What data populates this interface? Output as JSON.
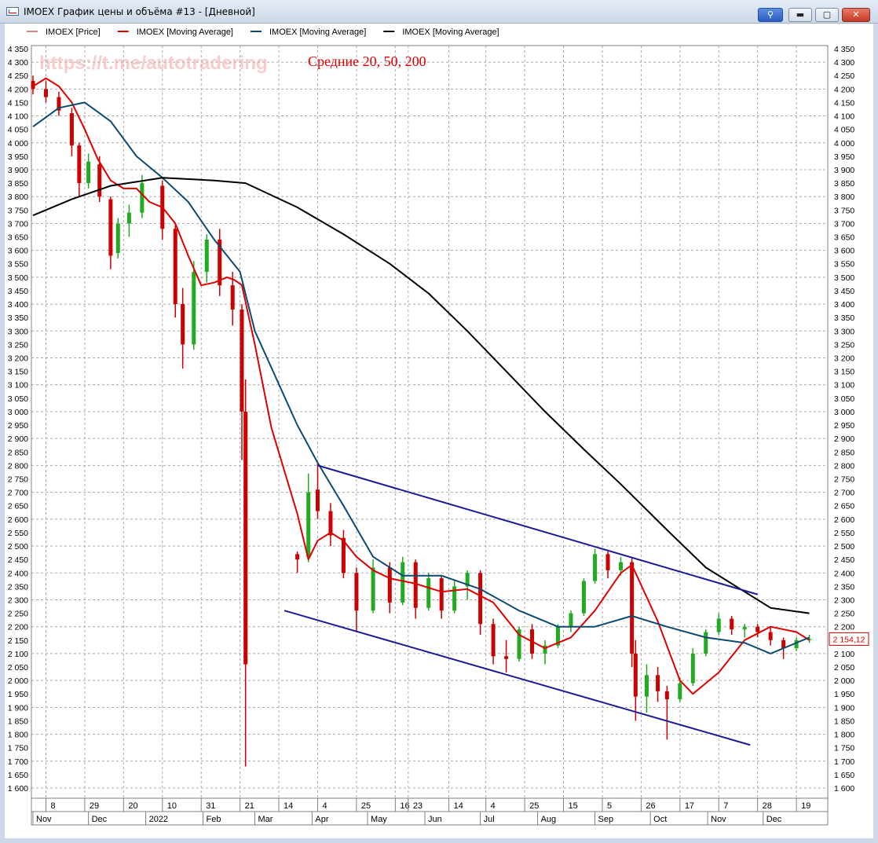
{
  "window": {
    "title": "IMOEX График цены и объёма #13 - [Дневной]",
    "controls": {
      "pin": "⚲",
      "minimize": "▬",
      "maximize": "▢",
      "close": "✕"
    }
  },
  "annotations": {
    "watermark": "https://t.me/autotradering",
    "note": "Средние 20, 50, 200"
  },
  "chart_data": {
    "type": "line",
    "legend": [
      {
        "label": "IMOEX [Price]",
        "color": "#cc0000",
        "style": "thin"
      },
      {
        "label": "IMOEX [Moving Average]",
        "color": "#e00000"
      },
      {
        "label": "IMOEX [Moving Average]",
        "color": "#0d4a73"
      },
      {
        "label": "IMOEX [Moving Average]",
        "color": "#000000"
      }
    ],
    "legend_position": "top-left",
    "last_price_label": "2 154,12",
    "ylim": [
      1600,
      4350
    ],
    "y_ticks": [
      "1 600",
      "1 650",
      "1 700",
      "1 750",
      "1 800",
      "1 850",
      "1 900",
      "1 950",
      "2 000",
      "2 050",
      "2 100",
      "2 150",
      "2 200",
      "2 250",
      "2 300",
      "2 350",
      "2 400",
      "2 450",
      "2 500",
      "2 550",
      "2 600",
      "2 650",
      "2 700",
      "2 750",
      "2 800",
      "2 850",
      "2 900",
      "2 950",
      "3 000",
      "3 050",
      "3 100",
      "3 150",
      "3 200",
      "3 250",
      "3 300",
      "3 350",
      "3 400",
      "3 450",
      "3 500",
      "3 550",
      "3 600",
      "3 650",
      "3 700",
      "3 750",
      "3 800",
      "3 850",
      "3 900",
      "3 950",
      "4 000",
      "4 050",
      "4 100",
      "4 150",
      "4 200",
      "4 250",
      "4 300",
      "4 350"
    ],
    "x_day_ticks": [
      "8",
      "29",
      "20",
      "10",
      "31",
      "21",
      "14",
      "4",
      "25",
      "16",
      "23",
      "14",
      "4",
      "25",
      "15",
      "5",
      "26",
      "17",
      "7",
      "28",
      "19"
    ],
    "x_day_tick_values": [
      "2021-11-08",
      "2021-11-29",
      "2021-12-20",
      "2022-01-10",
      "2022-01-31",
      "2022-02-21",
      "2022-03-14",
      "2022-04-04",
      "2022-04-25",
      "2022-05-16",
      "2022-05-23",
      "2022-06-14",
      "2022-07-04",
      "2022-07-25",
      "2022-08-15",
      "2022-09-05",
      "2022-09-26",
      "2022-10-17",
      "2022-11-07",
      "2022-11-28",
      "2022-12-19"
    ],
    "x_month_ticks": [
      "Nov",
      "Dec",
      "2022",
      "Feb",
      "Mar",
      "Apr",
      "May",
      "Jun",
      "Jul",
      "Aug",
      "Sep",
      "Oct",
      "Nov",
      "Dec"
    ],
    "x_month_tick_values": [
      "2021-11-01",
      "2021-12-01",
      "2022-01-01",
      "2022-02-01",
      "2022-03-01",
      "2022-04-01",
      "2022-05-01",
      "2022-06-01",
      "2022-07-01",
      "2022-08-01",
      "2022-09-01",
      "2022-10-01",
      "2022-11-01",
      "2022-12-01"
    ],
    "grid": true,
    "series": [
      {
        "name": "IMOEX [Price]",
        "kind": "candles",
        "up_color": "#22aa22",
        "down_color": "#cc0000",
        "points": [
          [
            "2021-11-01",
            4230,
            4250,
            4180,
            4200
          ],
          [
            "2021-11-08",
            4200,
            4230,
            4150,
            4170
          ],
          [
            "2021-11-15",
            4170,
            4190,
            4100,
            4120
          ],
          [
            "2021-11-22",
            4110,
            4130,
            3950,
            3990
          ],
          [
            "2021-11-26",
            3990,
            4000,
            3800,
            3850
          ],
          [
            "2021-12-01",
            3850,
            3960,
            3830,
            3930
          ],
          [
            "2021-12-07",
            3920,
            3950,
            3780,
            3800
          ],
          [
            "2021-12-13",
            3790,
            3800,
            3530,
            3580
          ],
          [
            "2021-12-17",
            3590,
            3720,
            3570,
            3700
          ],
          [
            "2021-12-23",
            3700,
            3770,
            3650,
            3740
          ],
          [
            "2021-12-30",
            3740,
            3880,
            3720,
            3850
          ],
          [
            "2022-01-10",
            3840,
            3860,
            3640,
            3680
          ],
          [
            "2022-01-17",
            3680,
            3700,
            3350,
            3400
          ],
          [
            "2022-01-21",
            3400,
            3460,
            3160,
            3250
          ],
          [
            "2022-01-27",
            3250,
            3560,
            3230,
            3520
          ],
          [
            "2022-02-03",
            3520,
            3660,
            3480,
            3640
          ],
          [
            "2022-02-10",
            3640,
            3680,
            3430,
            3470
          ],
          [
            "2022-02-17",
            3470,
            3520,
            3320,
            3380
          ],
          [
            "2022-02-22",
            3380,
            3400,
            2820,
            3000
          ],
          [
            "2022-02-24",
            3000,
            3120,
            1680,
            2060
          ],
          [
            "2022-03-24",
            2470,
            2480,
            2400,
            2450
          ],
          [
            "2022-03-30",
            2460,
            2770,
            2440,
            2700
          ],
          [
            "2022-04-04",
            2710,
            2810,
            2600,
            2630
          ],
          [
            "2022-04-11",
            2630,
            2660,
            2500,
            2540
          ],
          [
            "2022-04-18",
            2530,
            2560,
            2380,
            2400
          ],
          [
            "2022-04-25",
            2400,
            2420,
            2180,
            2260
          ],
          [
            "2022-05-04",
            2260,
            2450,
            2250,
            2420
          ],
          [
            "2022-05-13",
            2420,
            2440,
            2250,
            2290
          ],
          [
            "2022-05-20",
            2290,
            2460,
            2280,
            2440
          ],
          [
            "2022-05-27",
            2440,
            2450,
            2230,
            2270
          ],
          [
            "2022-06-03",
            2270,
            2400,
            2260,
            2380
          ],
          [
            "2022-06-10",
            2380,
            2390,
            2230,
            2260
          ],
          [
            "2022-06-17",
            2260,
            2370,
            2250,
            2350
          ],
          [
            "2022-06-24",
            2350,
            2410,
            2300,
            2400
          ],
          [
            "2022-07-01",
            2400,
            2410,
            2170,
            2210
          ],
          [
            "2022-07-08",
            2210,
            2230,
            2060,
            2090
          ],
          [
            "2022-07-15",
            2090,
            2150,
            2030,
            2080
          ],
          [
            "2022-07-22",
            2080,
            2200,
            2070,
            2190
          ],
          [
            "2022-07-29",
            2190,
            2210,
            2080,
            2100
          ],
          [
            "2022-08-05",
            2100,
            2150,
            2060,
            2130
          ],
          [
            "2022-08-12",
            2130,
            2210,
            2120,
            2200
          ],
          [
            "2022-08-19",
            2200,
            2260,
            2180,
            2250
          ],
          [
            "2022-08-26",
            2250,
            2380,
            2240,
            2370
          ],
          [
            "2022-09-01",
            2370,
            2490,
            2360,
            2470
          ],
          [
            "2022-09-08",
            2470,
            2480,
            2380,
            2410
          ],
          [
            "2022-09-15",
            2410,
            2460,
            2390,
            2440
          ],
          [
            "2022-09-21",
            2440,
            2460,
            2050,
            2100
          ],
          [
            "2022-09-23",
            2100,
            2150,
            1850,
            1940
          ],
          [
            "2022-09-29",
            1940,
            2060,
            1880,
            2020
          ],
          [
            "2022-10-05",
            2020,
            2050,
            1920,
            1960
          ],
          [
            "2022-10-10",
            1960,
            1980,
            1780,
            1930
          ],
          [
            "2022-10-17",
            1930,
            2010,
            1920,
            1990
          ],
          [
            "2022-10-24",
            1990,
            2120,
            1980,
            2100
          ],
          [
            "2022-10-31",
            2100,
            2190,
            2090,
            2180
          ],
          [
            "2022-11-07",
            2180,
            2250,
            2170,
            2230
          ],
          [
            "2022-11-14",
            2230,
            2240,
            2170,
            2190
          ],
          [
            "2022-11-21",
            2190,
            2210,
            2160,
            2200
          ],
          [
            "2022-11-28",
            2200,
            2210,
            2160,
            2180
          ],
          [
            "2022-12-05",
            2180,
            2200,
            2130,
            2150
          ],
          [
            "2022-12-12",
            2150,
            2160,
            2080,
            2120
          ],
          [
            "2022-12-19",
            2120,
            2160,
            2110,
            2150
          ],
          [
            "2022-12-26",
            2150,
            2170,
            2140,
            2154.12
          ]
        ]
      },
      {
        "name": "IMOEX [Moving Average]",
        "period": 20,
        "color": "#e00000",
        "points": [
          [
            "2021-11-01",
            4210
          ],
          [
            "2021-11-08",
            4240
          ],
          [
            "2021-11-15",
            4210
          ],
          [
            "2021-11-22",
            4150
          ],
          [
            "2021-11-29",
            4050
          ],
          [
            "2021-12-06",
            3940
          ],
          [
            "2021-12-13",
            3860
          ],
          [
            "2021-12-20",
            3830
          ],
          [
            "2021-12-27",
            3830
          ],
          [
            "2022-01-03",
            3780
          ],
          [
            "2022-01-10",
            3760
          ],
          [
            "2022-01-17",
            3700
          ],
          [
            "2022-01-24",
            3580
          ],
          [
            "2022-01-31",
            3470
          ],
          [
            "2022-02-07",
            3480
          ],
          [
            "2022-02-14",
            3500
          ],
          [
            "2022-02-18",
            3490
          ],
          [
            "2022-02-22",
            3470
          ],
          [
            "2022-03-01",
            3250
          ],
          [
            "2022-03-10",
            2940
          ],
          [
            "2022-03-24",
            2620
          ],
          [
            "2022-03-30",
            2450
          ],
          [
            "2022-04-04",
            2520
          ],
          [
            "2022-04-11",
            2550
          ],
          [
            "2022-04-18",
            2520
          ],
          [
            "2022-04-25",
            2460
          ],
          [
            "2022-05-04",
            2410
          ],
          [
            "2022-05-13",
            2380
          ],
          [
            "2022-05-20",
            2370
          ],
          [
            "2022-05-27",
            2360
          ],
          [
            "2022-06-10",
            2330
          ],
          [
            "2022-06-24",
            2340
          ],
          [
            "2022-07-08",
            2290
          ],
          [
            "2022-07-22",
            2170
          ],
          [
            "2022-08-05",
            2120
          ],
          [
            "2022-08-19",
            2160
          ],
          [
            "2022-09-01",
            2260
          ],
          [
            "2022-09-15",
            2400
          ],
          [
            "2022-09-21",
            2430
          ],
          [
            "2022-10-05",
            2220
          ],
          [
            "2022-10-17",
            2000
          ],
          [
            "2022-10-24",
            1950
          ],
          [
            "2022-11-07",
            2030
          ],
          [
            "2022-11-21",
            2150
          ],
          [
            "2022-12-05",
            2200
          ],
          [
            "2022-12-19",
            2180
          ],
          [
            "2022-12-26",
            2150
          ]
        ]
      },
      {
        "name": "IMOEX [Moving Average]",
        "period": 50,
        "color": "#0d4a73",
        "points": [
          [
            "2021-11-01",
            4060
          ],
          [
            "2021-11-15",
            4130
          ],
          [
            "2021-11-29",
            4150
          ],
          [
            "2021-12-13",
            4080
          ],
          [
            "2021-12-27",
            3950
          ],
          [
            "2022-01-10",
            3870
          ],
          [
            "2022-01-24",
            3780
          ],
          [
            "2022-02-07",
            3640
          ],
          [
            "2022-02-21",
            3520
          ],
          [
            "2022-03-01",
            3300
          ],
          [
            "2022-03-24",
            2950
          ],
          [
            "2022-04-04",
            2810
          ],
          [
            "2022-04-18",
            2650
          ],
          [
            "2022-05-04",
            2460
          ],
          [
            "2022-05-20",
            2390
          ],
          [
            "2022-06-10",
            2390
          ],
          [
            "2022-07-01",
            2340
          ],
          [
            "2022-07-22",
            2260
          ],
          [
            "2022-08-12",
            2200
          ],
          [
            "2022-09-01",
            2200
          ],
          [
            "2022-09-21",
            2240
          ],
          [
            "2022-10-10",
            2200
          ],
          [
            "2022-10-31",
            2160
          ],
          [
            "2022-11-21",
            2140
          ],
          [
            "2022-12-05",
            2100
          ],
          [
            "2022-12-26",
            2160
          ]
        ]
      },
      {
        "name": "IMOEX [Moving Average]",
        "period": 200,
        "color": "#000000",
        "points": [
          [
            "2021-11-01",
            3730
          ],
          [
            "2021-11-22",
            3790
          ],
          [
            "2021-12-13",
            3840
          ],
          [
            "2022-01-10",
            3870
          ],
          [
            "2022-02-07",
            3860
          ],
          [
            "2022-02-24",
            3850
          ],
          [
            "2022-03-24",
            3760
          ],
          [
            "2022-04-18",
            3660
          ],
          [
            "2022-05-13",
            3550
          ],
          [
            "2022-06-03",
            3440
          ],
          [
            "2022-06-24",
            3300
          ],
          [
            "2022-07-15",
            3150
          ],
          [
            "2022-08-05",
            3000
          ],
          [
            "2022-08-26",
            2860
          ],
          [
            "2022-09-15",
            2730
          ],
          [
            "2022-10-10",
            2560
          ],
          [
            "2022-10-31",
            2420
          ],
          [
            "2022-11-21",
            2330
          ],
          [
            "2022-12-05",
            2270
          ],
          [
            "2022-12-26",
            2250
          ]
        ]
      },
      {
        "name": "Upper trend line",
        "kind": "trendline",
        "color": "#1a1a99",
        "points": [
          [
            "2022-04-04",
            2800
          ],
          [
            "2022-11-28",
            2320
          ]
        ]
      },
      {
        "name": "Lower trend line",
        "kind": "trendline",
        "color": "#1a1a99",
        "points": [
          [
            "2022-03-17",
            2260
          ],
          [
            "2022-11-24",
            1760
          ]
        ]
      }
    ]
  }
}
